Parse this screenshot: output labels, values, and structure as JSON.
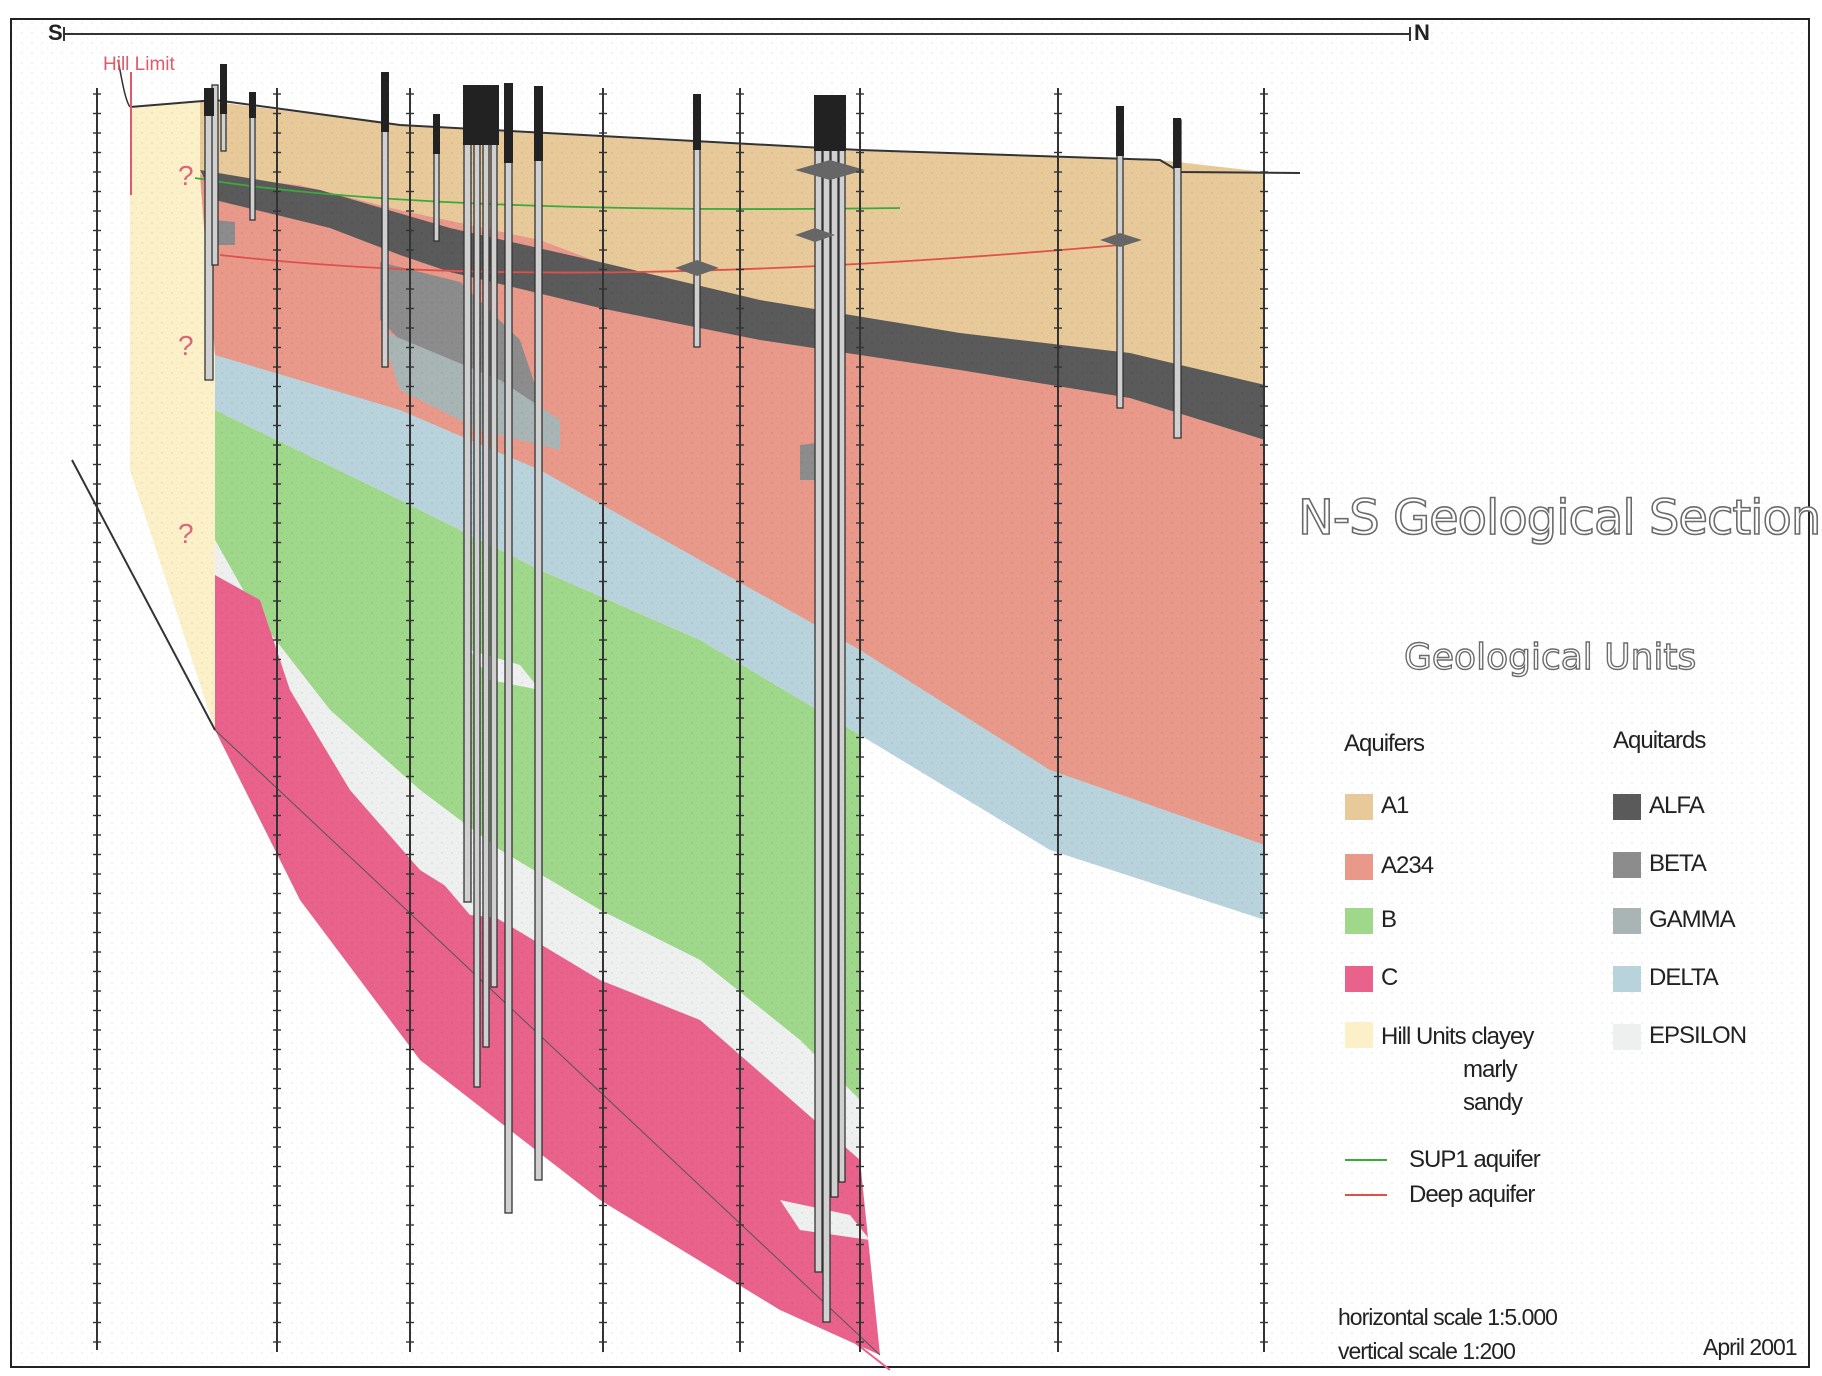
{
  "header": {
    "south_label": "S",
    "north_label": "N"
  },
  "annotations": {
    "hill_limit": "Hill Limit",
    "uncertain_mark": "?"
  },
  "title": "N-S Geological Section",
  "legend": {
    "title": "Geological Units",
    "aquifers_heading": "Aquifers",
    "aquitards_heading": "Aquitards",
    "aquifers": [
      {
        "label": "A1",
        "color": "#e8c99a"
      },
      {
        "label": "A234",
        "color": "#e8998a"
      },
      {
        "label": "B",
        "color": "#9fd88a"
      },
      {
        "label": "C",
        "color": "#e8628c"
      }
    ],
    "hill_units": {
      "label": "Hill Units clayey",
      "line2": "marly",
      "line3": "sandy",
      "color": "#fbf0c8"
    },
    "aquitards": [
      {
        "label": "ALFA",
        "color": "#5a5a5a"
      },
      {
        "label": "BETA",
        "color": "#8c8c8c"
      },
      {
        "label": "GAMMA",
        "color": "#a9b5b5"
      },
      {
        "label": "DELTA",
        "color": "#b9d3dc"
      },
      {
        "label": "EPSILON",
        "color": "#eef0f0"
      }
    ],
    "lines": [
      {
        "label": "SUP1 aquifer",
        "color": "#3aaa3a"
      },
      {
        "label": "Deep aquifer",
        "color": "#e0504a"
      }
    ]
  },
  "footer": {
    "horizontal_scale": "horizontal scale 1:5.000",
    "vertical_scale": "vertical scale 1:200",
    "date": "April 2001"
  }
}
